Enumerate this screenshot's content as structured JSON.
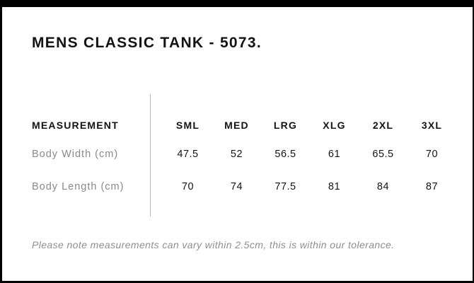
{
  "header": {
    "title": "MENS CLASSIC TANK - 5073."
  },
  "table": {
    "measurement_header": "MEASUREMENT",
    "size_headers": [
      "SML",
      "MED",
      "LRG",
      "XLG",
      "2XL",
      "3XL"
    ],
    "rows": [
      {
        "label": "Body Width (cm)",
        "values": [
          "47.5",
          "52",
          "56.5",
          "61",
          "65.5",
          "70"
        ]
      },
      {
        "label": "Body Length (cm)",
        "values": [
          "70",
          "74",
          "77.5",
          "81",
          "84",
          "87"
        ]
      }
    ]
  },
  "footer": {
    "note": "Please note measurements can vary within 2.5cm, this is within our tolerance."
  },
  "colors": {
    "text": "#131313",
    "muted_label": "#8a8a8a",
    "note_gray": "#8f8f8f",
    "divider": "#b9b9b9",
    "frame": "#000000",
    "background": "#ffffff"
  },
  "chart_data": {
    "type": "table",
    "title": "MENS CLASSIC TANK - 5073.",
    "columns": [
      "MEASUREMENT",
      "SML",
      "MED",
      "LRG",
      "XLG",
      "2XL",
      "3XL"
    ],
    "rows": [
      [
        "Body Width (cm)",
        47.5,
        52,
        56.5,
        61,
        65.5,
        70
      ],
      [
        "Body Length (cm)",
        70,
        74,
        77.5,
        81,
        84,
        87
      ]
    ],
    "note": "Please note measurements can vary within 2.5cm, this is within our tolerance.",
    "layout": "size chart table; label column separated from value columns by vertical gray rule; grid off"
  }
}
